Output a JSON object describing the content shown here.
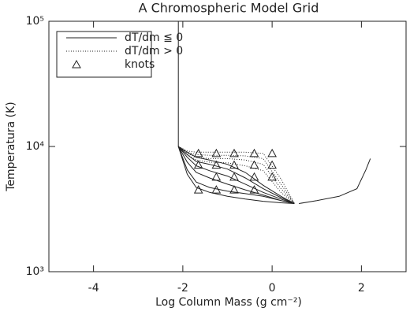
{
  "chart_data": {
    "type": "line",
    "title": "A Chromospheric Model Grid",
    "x_label": "Log Column Mass (g cm⁻²)",
    "y_label": "Temperatura (K)",
    "xlim": [
      -5,
      3
    ],
    "xticks": [
      -4,
      -2,
      0,
      2
    ],
    "ylim": [
      1000,
      100000
    ],
    "y_log": true,
    "yticks": [
      {
        "value": 1000,
        "label": "10³"
      },
      {
        "value": 10000,
        "label": "10⁴"
      },
      {
        "value": 100000,
        "label": "10⁵"
      }
    ],
    "legend_position": "upper-left",
    "legend": [
      {
        "label": "dT/dm ≦ 0",
        "style": "solid"
      },
      {
        "label": "dT/dm > 0",
        "style": "dotted"
      },
      {
        "label": "knots",
        "style": "triangle"
      }
    ],
    "color": "#222222",
    "series": [
      {
        "style": "solid",
        "x": [
          -2.1,
          -2.1
        ],
        "values": [
          10000,
          100000
        ]
      },
      {
        "style": "solid",
        "x": [
          -2.1,
          -1.9,
          -1.7,
          -1.4,
          -1.0,
          -0.6,
          -0.2,
          0.2,
          0.5
        ],
        "values": [
          10000,
          6000,
          4700,
          4300,
          4000,
          3800,
          3650,
          3550,
          3500
        ]
      },
      {
        "style": "solid",
        "x": [
          -2.1,
          -1.9,
          -1.7,
          -1.4,
          -1.0,
          -0.6,
          -0.2,
          0.2,
          0.5
        ],
        "values": [
          10000,
          6500,
          5200,
          4700,
          4400,
          4200,
          4000,
          3700,
          3500
        ]
      },
      {
        "style": "solid",
        "x": [
          -2.1,
          -1.9,
          -1.7,
          -1.4,
          -1.0,
          -0.6,
          -0.2,
          0.2,
          0.5
        ],
        "values": [
          10000,
          7500,
          6200,
          5600,
          5000,
          4500,
          4100,
          3700,
          3500
        ]
      },
      {
        "style": "solid",
        "x": [
          -2.1,
          -1.9,
          -1.7,
          -1.4,
          -1.0,
          -0.6,
          -0.2,
          0.2,
          0.5
        ],
        "values": [
          10000,
          8200,
          7000,
          6400,
          5800,
          5000,
          4300,
          3800,
          3500
        ]
      },
      {
        "style": "solid",
        "x": [
          -2.1,
          -1.9,
          -1.7,
          -1.4,
          -1.0,
          -0.6,
          -0.2,
          0.2,
          0.5
        ],
        "values": [
          10000,
          8600,
          7600,
          7200,
          6600,
          5600,
          4600,
          3900,
          3500
        ]
      },
      {
        "style": "solid",
        "x": [
          -2.1,
          -1.9,
          -1.7,
          -1.4,
          -1.0,
          -0.6,
          -0.2,
          0.2,
          0.5
        ],
        "values": [
          10000,
          9000,
          8200,
          7800,
          7200,
          6200,
          4900,
          4000,
          3500
        ]
      },
      {
        "style": "dotted",
        "x": [
          -2.1,
          -1.9,
          -1.7,
          -1.4,
          -1.0,
          -0.6,
          -0.2,
          0.2,
          0.5
        ],
        "values": [
          10000,
          9200,
          9000,
          9000,
          9000,
          9000,
          8800,
          5500,
          3500
        ]
      },
      {
        "style": "dotted",
        "x": [
          -2.1,
          -1.9,
          -1.7,
          -1.4,
          -1.0,
          -0.6,
          -0.2,
          0.2,
          0.5
        ],
        "values": [
          10000,
          9000,
          8600,
          8500,
          8500,
          8400,
          8000,
          5000,
          3500
        ]
      },
      {
        "style": "dotted",
        "x": [
          -2.1,
          -1.9,
          -1.7,
          -1.4,
          -1.0,
          -0.6,
          -0.2,
          0.2,
          0.5
        ],
        "values": [
          10000,
          8800,
          8200,
          8000,
          8000,
          7800,
          7200,
          4600,
          3500
        ]
      },
      {
        "style": "dotted",
        "x": [
          -2.1,
          -1.9,
          -1.7,
          -1.4,
          -1.0,
          -0.6,
          -0.2,
          0.2,
          0.5
        ],
        "values": [
          10000,
          8600,
          7800,
          7500,
          7400,
          7000,
          6400,
          4300,
          3500
        ]
      },
      {
        "style": "solid",
        "x": [
          0.6,
          1.0,
          1.5,
          1.9,
          2.1,
          2.2
        ],
        "values": [
          3500,
          3700,
          4000,
          4600,
          6500,
          8000
        ]
      },
      {
        "style": "triangle",
        "x": [
          -1.65,
          -1.25,
          -0.85,
          -0.4,
          0,
          -1.65,
          -1.25,
          -0.85,
          -0.4,
          0,
          -1.25,
          -0.85,
          -0.4,
          0,
          -1.65,
          -1.25,
          -0.85,
          -0.4
        ],
        "values": [
          8800,
          8800,
          8800,
          8800,
          8800,
          7100,
          7100,
          7100,
          7100,
          7100,
          5700,
          5700,
          5700,
          5700,
          4500,
          4500,
          4500,
          4500
        ]
      }
    ]
  }
}
